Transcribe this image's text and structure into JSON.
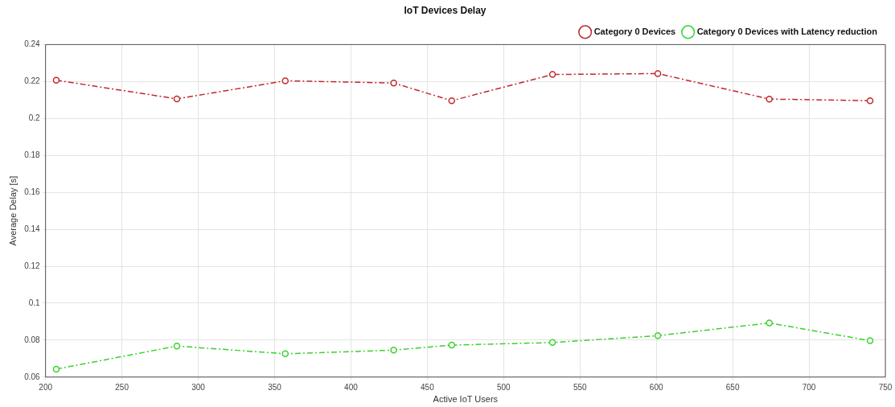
{
  "chart_data": {
    "type": "line",
    "title": "IoT Devices Delay",
    "xlabel": "Active IoT Users",
    "ylabel": "Average Delay [s]",
    "x": [
      207,
      286,
      357,
      428,
      466,
      532,
      601,
      674,
      740
    ],
    "series": [
      {
        "name": "Category 0 Devices",
        "color": "#c0282d",
        "values": [
          0.2207,
          0.2106,
          0.2204,
          0.2192,
          0.2096,
          0.2238,
          0.2243,
          0.2105,
          0.2096
        ]
      },
      {
        "name": "Category 0 Devices with Latency reduction",
        "color": "#3ad12e",
        "values": [
          0.0643,
          0.0768,
          0.0726,
          0.0746,
          0.0773,
          0.0787,
          0.0824,
          0.0893,
          0.0797
        ]
      }
    ],
    "xlim": [
      200,
      750
    ],
    "xticks": [
      200,
      250,
      300,
      350,
      400,
      450,
      500,
      550,
      600,
      650,
      700,
      750
    ],
    "ylim": [
      0.06,
      0.24
    ],
    "yticks": [
      0.06,
      0.08,
      0.1,
      0.12,
      0.14,
      0.16,
      0.18,
      0.2,
      0.22,
      0.24
    ],
    "grid": true,
    "legend": "top right",
    "marker": "circle",
    "line_style": "dashed"
  }
}
